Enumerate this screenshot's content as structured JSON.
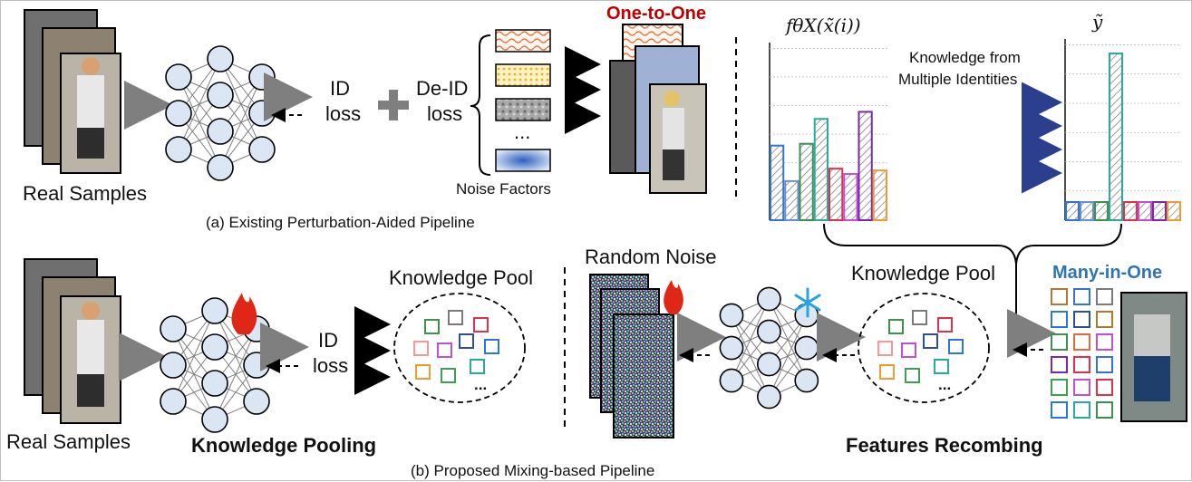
{
  "top": {
    "real_samples": "Real Samples",
    "id_loss": [
      "ID",
      "loss"
    ],
    "deid_loss": [
      "De-ID",
      "loss"
    ],
    "ellipsis": "...",
    "noise_factors": "Noise Factors",
    "one_to_one": "One-to-One",
    "caption": "(a) Existing Perturbation-Aided Pipeline"
  },
  "chart": {
    "left_label": "fθX(x̃(i))",
    "right_label": "ỹ",
    "knowledge_text": [
      "Knowledge from",
      "Multiple Identities"
    ],
    "left_bars": [
      0.42,
      0.22,
      0.43,
      0.57,
      0.29,
      0.26,
      0.61,
      0.28
    ],
    "right_bars": [
      0.1,
      0.1,
      0.1,
      0.92,
      0.1,
      0.1,
      0.1,
      0.1
    ],
    "bar_colors": [
      "#2e75d6",
      "#6a8fd0",
      "#3f8f4f",
      "#2aa9a0",
      "#e0304a",
      "#c24fd6",
      "#7a2aa8",
      "#f29a2e"
    ]
  },
  "bottom": {
    "real_samples": "Real Samples",
    "id_loss": [
      "ID",
      "loss"
    ],
    "knowledge_pooling": "Knowledge Pooling",
    "knowledge_pool_left": "Knowledge Pool",
    "random_noise": "Random Noise",
    "knowledge_pool_right": "Knowledge Pool",
    "features_recombing": "Features Recombing",
    "many_in_one": "Many-in-One",
    "ellipsis": "...",
    "caption": "(b) Proposed Mixing-based Pipeline"
  },
  "colors": {
    "one_to_one": "#c00000",
    "many_in_one": "#2e75b6",
    "node_fill": "#dbe6f4",
    "arrow_gray": "#7f7f7f"
  }
}
